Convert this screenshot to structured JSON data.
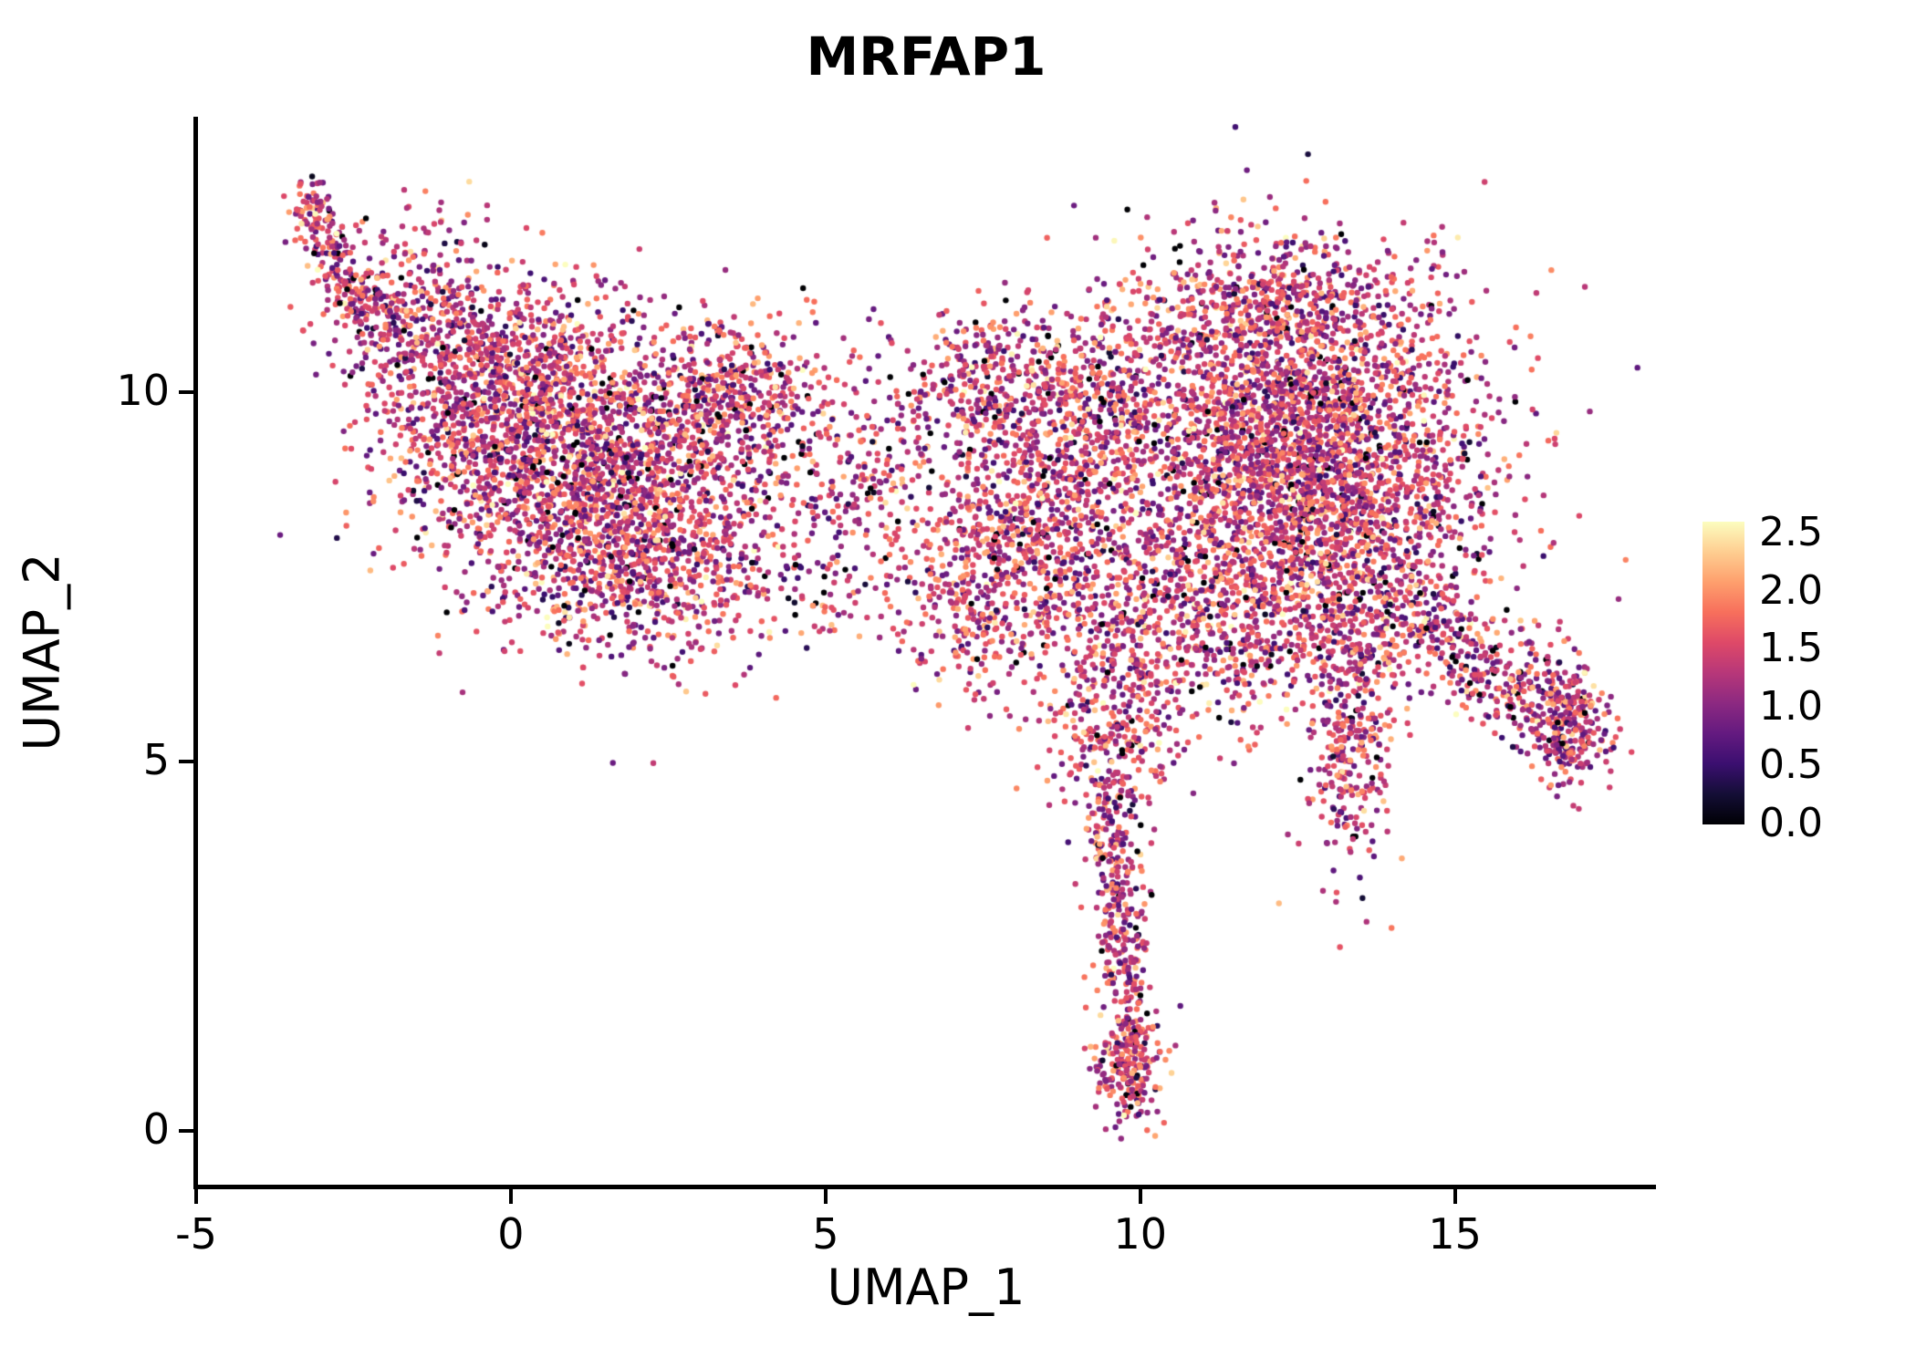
{
  "chart_data": {
    "type": "scatter",
    "title": "MRFAP1",
    "xlabel": "UMAP_1",
    "ylabel": "UMAP_2",
    "xlim": [
      -5,
      18.15
    ],
    "ylim": [
      -0.74,
      13.7
    ],
    "grid": false,
    "xticks": [
      {
        "value": -5,
        "label": "-5"
      },
      {
        "value": 0,
        "label": "0"
      },
      {
        "value": 5,
        "label": "5"
      },
      {
        "value": 10,
        "label": "10"
      },
      {
        "value": 15,
        "label": "15"
      }
    ],
    "yticks": [
      {
        "value": 0,
        "label": "0"
      },
      {
        "value": 5,
        "label": "5"
      },
      {
        "value": 10,
        "label": "10"
      }
    ],
    "colorbar": {
      "position": "right",
      "vmin": 0.0,
      "vmax": 2.6,
      "ticks": [
        {
          "value": 2.5,
          "label": "2.5"
        },
        {
          "value": 2.0,
          "label": "2.0"
        },
        {
          "value": 1.5,
          "label": "1.5"
        },
        {
          "value": 1.0,
          "label": "1.0"
        },
        {
          "value": 0.5,
          "label": "0.5"
        },
        {
          "value": 0.0,
          "label": "0.0"
        }
      ],
      "colormap": "magma",
      "stops": [
        {
          "t": 0.0,
          "c": "#000004"
        },
        {
          "t": 0.1,
          "c": "#140E36"
        },
        {
          "t": 0.2,
          "c": "#3B0F70"
        },
        {
          "t": 0.3,
          "c": "#641A80"
        },
        {
          "t": 0.4,
          "c": "#8C2981"
        },
        {
          "t": 0.5,
          "c": "#B73779"
        },
        {
          "t": 0.6,
          "c": "#DE4968"
        },
        {
          "t": 0.7,
          "c": "#F76F5C"
        },
        {
          "t": 0.8,
          "c": "#FE9F6D"
        },
        {
          "t": 0.9,
          "c": "#FECE91"
        },
        {
          "t": 1.0,
          "c": "#FCFDBF"
        }
      ]
    },
    "point_style": {
      "radius": 3.2,
      "value_mean": 1.4,
      "value_sd": 0.5,
      "zero_fraction": 0.03,
      "seed": 1234
    },
    "clusters": [
      {
        "type": "line",
        "x1": -3.35,
        "y1": 12.7,
        "x2": -2.3,
        "y2": 11.0,
        "jitter": 0.18,
        "count": 200
      },
      {
        "type": "blob",
        "cx": -1.6,
        "cy": 11.0,
        "sx": 0.7,
        "sy": 0.7,
        "count": 350
      },
      {
        "type": "blob",
        "cx": -0.3,
        "cy": 10.2,
        "sx": 1.0,
        "sy": 0.8,
        "count": 600
      },
      {
        "type": "blob",
        "cx": 1.0,
        "cy": 9.2,
        "sx": 1.4,
        "sy": 0.9,
        "count": 1700
      },
      {
        "type": "blob",
        "cx": 2.0,
        "cy": 7.7,
        "sx": 1.1,
        "sy": 0.7,
        "count": 800
      },
      {
        "type": "blob",
        "cx": 3.6,
        "cy": 9.9,
        "sx": 0.8,
        "sy": 0.6,
        "count": 450
      },
      {
        "type": "blob",
        "cx": 5.0,
        "cy": 8.0,
        "sx": 0.8,
        "sy": 0.8,
        "count": 180
      },
      {
        "type": "blob",
        "cx": 6.3,
        "cy": 9.0,
        "sx": 0.8,
        "sy": 0.9,
        "count": 160
      },
      {
        "type": "blob",
        "cx": 7.3,
        "cy": 7.0,
        "sx": 0.6,
        "sy": 0.5,
        "count": 150
      },
      {
        "type": "blob",
        "cx": 8.3,
        "cy": 8.2,
        "sx": 0.9,
        "sy": 1.1,
        "count": 850
      },
      {
        "type": "blob",
        "cx": 7.6,
        "cy": 10.2,
        "sx": 0.7,
        "sy": 0.5,
        "count": 220
      },
      {
        "type": "blob",
        "cx": 9.3,
        "cy": 9.9,
        "sx": 0.7,
        "sy": 0.7,
        "count": 300
      },
      {
        "type": "blob",
        "cx": 12.4,
        "cy": 9.3,
        "sx": 1.5,
        "sy": 1.1,
        "count": 2900
      },
      {
        "type": "blob",
        "cx": 12.2,
        "cy": 11.2,
        "sx": 1.3,
        "sy": 0.5,
        "count": 450
      },
      {
        "type": "blob",
        "cx": 11.3,
        "cy": 6.9,
        "sx": 1.1,
        "sy": 0.7,
        "count": 600
      },
      {
        "type": "blob",
        "cx": 13.5,
        "cy": 7.5,
        "sx": 0.9,
        "sy": 0.8,
        "count": 500
      },
      {
        "type": "line",
        "x1": 14.3,
        "y1": 7.0,
        "x2": 16.6,
        "y2": 5.6,
        "jitter": 0.35,
        "count": 320
      },
      {
        "type": "blob",
        "cx": 16.8,
        "cy": 5.5,
        "sx": 0.35,
        "sy": 0.45,
        "count": 260
      },
      {
        "type": "blob",
        "cx": 13.3,
        "cy": 5.3,
        "sx": 0.35,
        "sy": 0.9,
        "count": 330
      },
      {
        "type": "blob",
        "cx": 9.6,
        "cy": 5.7,
        "sx": 0.55,
        "sy": 0.9,
        "count": 380
      },
      {
        "type": "line",
        "x1": 9.5,
        "y1": 4.6,
        "x2": 9.8,
        "y2": 1.6,
        "jitter": 0.22,
        "count": 300
      },
      {
        "type": "blob",
        "cx": 9.85,
        "cy": 0.95,
        "sx": 0.28,
        "sy": 0.4,
        "count": 230
      },
      {
        "type": "blob",
        "cx": 6.8,
        "cy": 8.8,
        "sx": 3.5,
        "sy": 1.4,
        "count": 120
      }
    ]
  }
}
